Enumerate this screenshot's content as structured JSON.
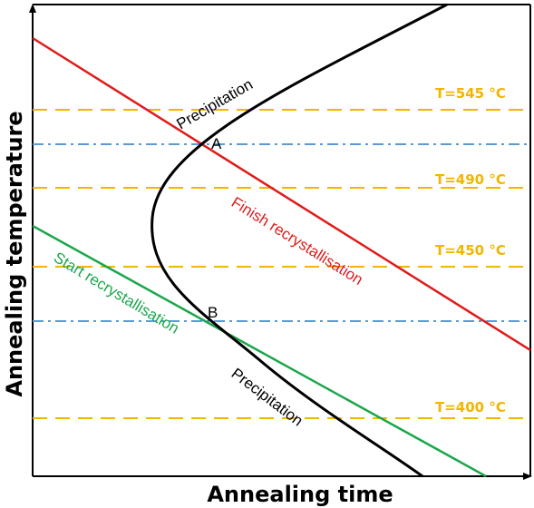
{
  "axes": {
    "x_title": "Annealing time",
    "y_title": "Annealing temperature"
  },
  "temperature_lines": [
    {
      "label": "T=545 °C",
      "color": "#f2b500"
    },
    {
      "label": "T=490 °C",
      "color": "#f2b500"
    },
    {
      "label": "T=450 °C",
      "color": "#f2b500"
    },
    {
      "label": "T=400 °C",
      "color": "#f2b500"
    }
  ],
  "curves": {
    "finish": {
      "label": "Finish recrystallisation",
      "color": "#e01b1b"
    },
    "start": {
      "label": "Start recrystallisation",
      "color": "#1aa64a"
    },
    "precipitation_upper": {
      "label": "Precipitation",
      "color": "#000000"
    },
    "precipitation_lower": {
      "label": "Precipitation",
      "color": "#000000"
    }
  },
  "points": {
    "a": "A",
    "b": "B"
  },
  "reference_line_color": "#5b9bd5"
}
